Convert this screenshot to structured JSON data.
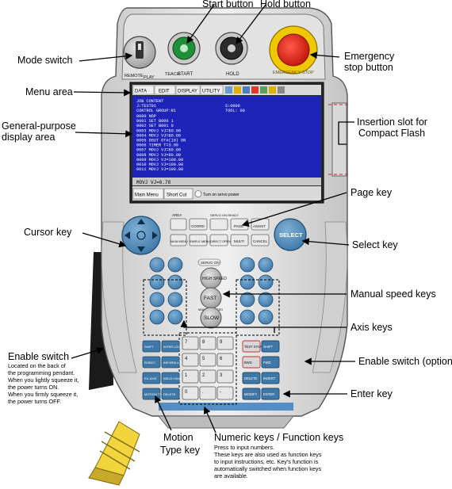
{
  "callouts": {
    "start_button": "Start button",
    "hold_button": "Hold button",
    "emergency_stop_line1": "Emergency",
    "emergency_stop_line2": "stop button",
    "mode_switch": "Mode switch",
    "menu_area": "Menu area",
    "general_display_line1": "General-purpose",
    "general_display_line2": "display area",
    "insertion_slot_line1": "Insertion slot for",
    "insertion_slot_line2": "Compact Flash",
    "page_key": "Page key",
    "cursor_key": "Cursor key",
    "select_key": "Select key",
    "manual_speed_keys": "Manual speed keys",
    "axis_keys": "Axis keys",
    "enable_switch_option": "Enable switch (option)",
    "enter_key": "Enter key",
    "enable_switch": {
      "title": "Enable switch",
      "lines": [
        "Located on the back of",
        "the programming pendant.",
        "When you lightly squeeze it,",
        "the power turns ON.",
        "When you firmly squeeze it,",
        "the power turns OFF."
      ]
    },
    "motion_type_line1": "Motion",
    "motion_type_line2": "Type key",
    "numeric_keys": {
      "title": "Numeric keys / Function keys",
      "lines": [
        "Press to input numbers.",
        "These keys are also used as function keys",
        "to input instructions, etc.  Key's function is",
        "automatically switched when function keys",
        "are available."
      ]
    }
  },
  "pendant": {
    "menu_tabs": [
      "DATA",
      "EDIT",
      "DISPLAY",
      "UTILITY"
    ],
    "screen_lines": [
      "JOB CONTENT",
      "J:TEST01",
      "CONTROL GROUP:R1",
      "S:0000",
      "TOOL: 00",
      "0000 NOP",
      "0001 SET B000 1",
      "0002 SET B001 0",
      "0003 MOVJ VJ=80.00",
      "0004 MOVJ VJ=80.00",
      "0005 DOUT OT#(10) ON",
      "0006 TIMER T=3.00",
      "0007 MOVJ VJ=80.00",
      "0008 MOVJ VJ=80.00",
      "0009 MOVJ VJ=100.00",
      "0010 MOVJ VJ=100.00",
      "0011 MOVJ VJ=100.00"
    ],
    "input_line": "MOVJ VJ=0.78",
    "bottom_buttons": [
      "Main Menu",
      "Short Cut"
    ],
    "status_msg": "Turn on servo power",
    "key_labels": {
      "select": "SELECT",
      "high_speed": "HIGH SPEED",
      "fast": "FAST",
      "slow": "SLOW",
      "manual_speed": "MANUAL SPEED",
      "servo_on": "SERVO ON READY",
      "start": "START",
      "hold": "HOLD",
      "emergency": "EMERGENCY STOP",
      "remote": "REMOTE",
      "play": "PLAY",
      "teach": "TEACH",
      "shift": "SHIFT",
      "interlock": "INTER LOCK",
      "test_start": "TEST START",
      "fwd": "FWD",
      "bwd": "BWD",
      "robot": "ROBOT",
      "ext_axis": "EX.AXIS",
      "motion_type": "MOTION TYPE",
      "inform_list": "INFORM LIST",
      "weld_on_off": "WELD ON/OFF",
      "delete": "DELETE",
      "insert": "INSERT",
      "modify": "MODIFY",
      "enter": "ENTER",
      "cancel": "CANCEL",
      "area": "AREA",
      "main_menu": "MAIN MENU",
      "simple_menu": "SIMPLE MENU",
      "servo_on_small": "SERVO ON",
      "coord": "COORD",
      "direct_open": "DIRECT OPEN",
      "page": "PAGE",
      "assist": "ASSIST",
      "multi": "MULTI",
      "numbers": [
        "7",
        "8",
        "9",
        "4",
        "5",
        "6",
        "1",
        "2",
        "3",
        "0",
        ".",
        "-"
      ]
    }
  }
}
